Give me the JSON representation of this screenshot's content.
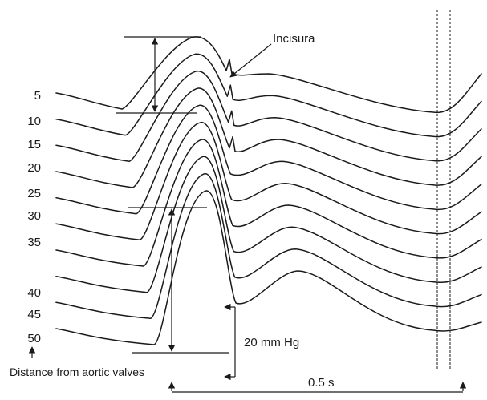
{
  "figure": {
    "distance_labels": [
      "5",
      "10",
      "15",
      "20",
      "25",
      "30",
      "35",
      "40",
      "45",
      "50"
    ],
    "incisura_label": "Incisura",
    "pressure_scale_label": "20 mm Hg",
    "axis_caption": "Distance from aortic valves",
    "time_scale_label": "0.5 s"
  }
}
